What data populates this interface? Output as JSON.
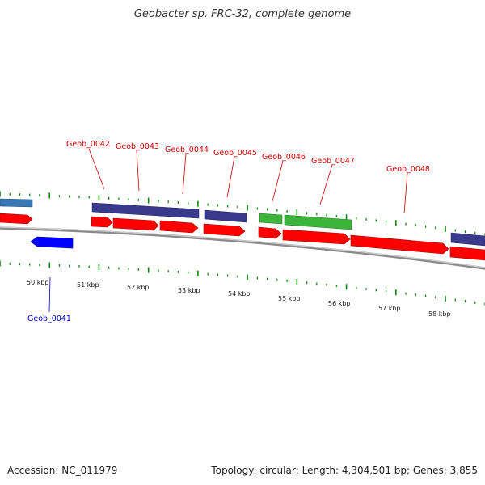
{
  "title": "Geobacter sp. FRC-32, complete genome",
  "accession": "Accession: NC_011979",
  "summary": "Topology: circular; Length: 4,304,501 bp; Genes: 3,855",
  "colors": {
    "forward_strand": "#ff0000",
    "reverse_strand": "#0000ff",
    "cds_forward": "#3a3a8c",
    "cds_other": "#3cb43c",
    "cds_left": "#3a78b4",
    "backbone": "#8a8a8a",
    "ticks": "#0a8a0a",
    "label_forward": "#cc0000",
    "label_reverse": "#0000cc"
  },
  "scale": {
    "unit": "kbp",
    "ticks": [
      "50 kbp",
      "51 kbp",
      "52 kbp",
      "53 kbp",
      "54 kbp",
      "55 kbp",
      "56 kbp",
      "57 kbp",
      "58 kbp"
    ]
  },
  "genes": [
    {
      "label": "Geob_0041",
      "strand": "reverse"
    },
    {
      "label": "Geob_0042",
      "strand": "forward"
    },
    {
      "label": "Geob_0043",
      "strand": "forward"
    },
    {
      "label": "Geob_0044",
      "strand": "forward"
    },
    {
      "label": "Geob_0045",
      "strand": "forward"
    },
    {
      "label": "Geob_0046",
      "strand": "forward"
    },
    {
      "label": "Geob_0047",
      "strand": "forward"
    },
    {
      "label": "Geob_0048",
      "strand": "forward"
    }
  ]
}
